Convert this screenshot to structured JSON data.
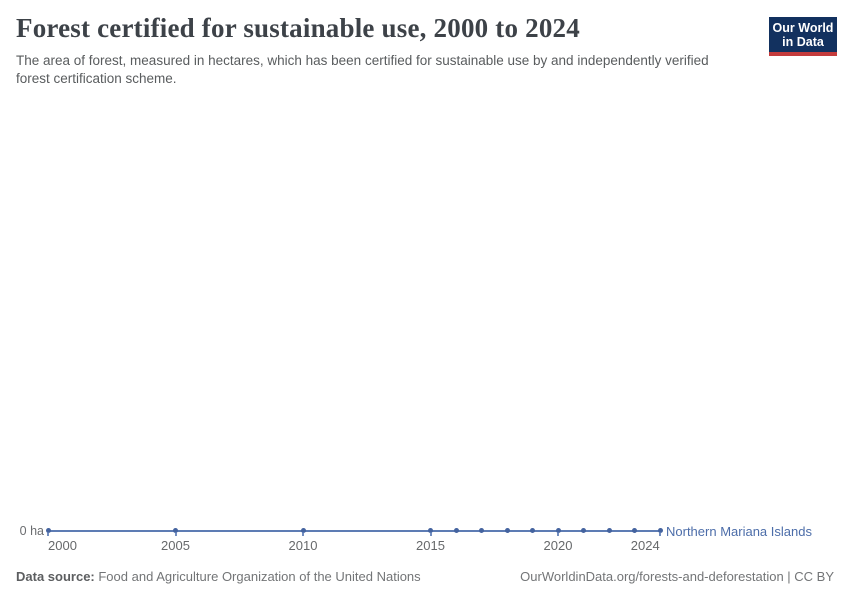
{
  "header": {
    "title": "Forest certified for sustainable use, 2000 to 2024",
    "subtitle": "The area of forest, measured in hectares, which has been certified for sustainable use by and independently verified forest certification scheme.",
    "logo": {
      "line1": "Our World",
      "line2": "in Data"
    }
  },
  "chart_data": {
    "type": "line",
    "title": "Forest certified for sustainable use, 2000 to 2024",
    "xlabel": "",
    "ylabel": "",
    "y_zero_label": "0 ha",
    "unit": "ha",
    "xlim": [
      2000,
      2024
    ],
    "grid": false,
    "legend_position": "end-of-line",
    "x_ticks": [
      2000,
      2005,
      2010,
      2015,
      2020,
      2024
    ],
    "x_tick_labels": [
      "2000",
      "2005",
      "2010",
      "2015",
      "2020",
      "2024"
    ],
    "series": [
      {
        "name": "Northern Mariana Islands",
        "x": [
          2000,
          2005,
          2010,
          2015,
          2016,
          2017,
          2018,
          2019,
          2020,
          2021,
          2022,
          2023,
          2024
        ],
        "values": [
          0,
          0,
          0,
          0,
          0,
          0,
          0,
          0,
          0,
          0,
          0,
          0,
          0
        ],
        "color": "#4c6a9c"
      }
    ]
  },
  "footer": {
    "source_label": "Data source:",
    "source_text": " Food and Agriculture Organization of the United Nations",
    "credit": "OurWorldinData.org/forests-and-deforestation | CC BY"
  },
  "colors": {
    "line": "#5d7cb4",
    "marker": "#44639f",
    "tick": "#5b7ab5",
    "entity_label": "#4c6da9",
    "logo_bg": "#12315f",
    "logo_red": "#c43b3c",
    "title_text": "#3d4248"
  }
}
